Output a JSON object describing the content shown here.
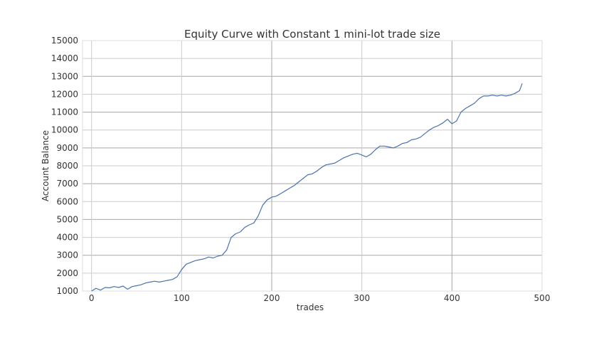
{
  "chart_data": {
    "type": "line",
    "title": "Equity Curve with Constant 1 mini-lot trade size",
    "xlabel": "trades",
    "ylabel": "Account Balance",
    "xlim": [
      -10,
      500
    ],
    "ylim": [
      1000,
      15000
    ],
    "xticks": [
      0,
      100,
      200,
      300,
      400,
      500
    ],
    "yticks": [
      1000,
      2000,
      3000,
      4000,
      5000,
      6000,
      7000,
      8000,
      9000,
      10000,
      11000,
      12000,
      13000,
      14000,
      15000
    ],
    "grid": true,
    "colors": {
      "series": "#4c72b0",
      "grid": "#cccccc",
      "grid_major": "#a8a8a8"
    },
    "series": [
      {
        "x": [
          0,
          5,
          10,
          15,
          20,
          25,
          30,
          35,
          40,
          45,
          50,
          55,
          60,
          65,
          70,
          75,
          80,
          85,
          90,
          95,
          100,
          105,
          110,
          115,
          120,
          125,
          130,
          135,
          140,
          145,
          150,
          155,
          160,
          165,
          170,
          175,
          180,
          185,
          190,
          195,
          200,
          205,
          210,
          215,
          220,
          225,
          230,
          235,
          240,
          245,
          250,
          255,
          260,
          265,
          270,
          275,
          280,
          285,
          290,
          295,
          300,
          305,
          310,
          315,
          320,
          325,
          330,
          335,
          340,
          345,
          350,
          355,
          360,
          365,
          370,
          375,
          380,
          385,
          390,
          395,
          400,
          405,
          410,
          415,
          420,
          425,
          430,
          435,
          440,
          445,
          450,
          455,
          460,
          465,
          470,
          475,
          478
        ],
        "values": [
          1000,
          1150,
          1050,
          1200,
          1180,
          1250,
          1200,
          1280,
          1100,
          1250,
          1300,
          1350,
          1450,
          1500,
          1550,
          1500,
          1550,
          1600,
          1650,
          1800,
          2200,
          2500,
          2600,
          2700,
          2750,
          2800,
          2900,
          2850,
          2950,
          3000,
          3300,
          4000,
          4200,
          4300,
          4550,
          4700,
          4800,
          5200,
          5800,
          6100,
          6250,
          6300,
          6450,
          6600,
          6750,
          6900,
          7100,
          7300,
          7500,
          7550,
          7700,
          7900,
          8050,
          8100,
          8150,
          8300,
          8450,
          8550,
          8650,
          8700,
          8600,
          8500,
          8650,
          8900,
          9100,
          9100,
          9050,
          9000,
          9100,
          9250,
          9300,
          9450,
          9500,
          9600,
          9800,
          10000,
          10150,
          10250,
          10400,
          10600,
          10350,
          10500,
          11000,
          11200,
          11350,
          11500,
          11750,
          11900,
          11900,
          11950,
          11900,
          11950,
          11900,
          11950,
          12050,
          12200,
          12600
        ]
      }
    ]
  }
}
